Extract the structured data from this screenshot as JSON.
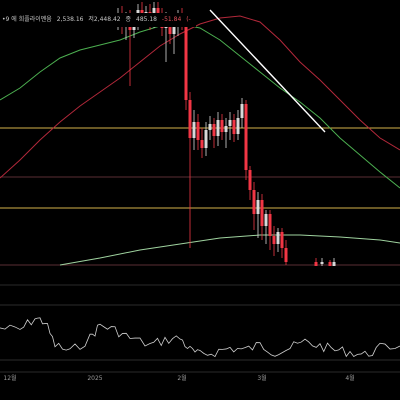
{
  "colors": {
    "background": "#000000",
    "up": "#d9d9d9",
    "down": "#f23645",
    "ma_fast": "#4caf50",
    "ma_slow": "#b2283a",
    "ma_long": "#9fd39f",
    "hline": "#d4b24a",
    "hline_faint": "#5a2e33",
    "trendline": "#ffffff",
    "rsi": "#cfcfcf",
    "separator": "#2a2a2a",
    "axis_text": "#9a9a9a"
  },
  "header": {
    "title_fragment": "•9 에 희플라이멘움",
    "ohlc": [
      {
        "key": "open",
        "text": "2,538.16"
      },
      {
        "key": "high",
        "text": "저2,448.42"
      },
      {
        "key": "low",
        "text": "종"
      },
      {
        "key": "close",
        "text": "485.18"
      },
      {
        "key": "change",
        "text": "-51.84"
      },
      {
        "key": "change_pct",
        "text": "(-"
      }
    ]
  },
  "chart_data": [
    {
      "type": "candlestick",
      "title": "",
      "x_ticks": [
        "12월",
        "2025",
        "2월",
        "3월",
        "4월"
      ],
      "grid": false,
      "horizontal_lines": [
        {
          "level": "upper",
          "color": "#d4b24a"
        },
        {
          "level": "middle",
          "color": "#5a2e33"
        },
        {
          "level": "lower",
          "color": "#d4b24a"
        },
        {
          "level": "bottom",
          "color": "#5a2e33"
        }
      ],
      "series": [
        {
          "kind": "candles",
          "trend": "flat-high then sharp decline"
        },
        {
          "kind": "moving_average",
          "role": "fast"
        },
        {
          "kind": "moving_average",
          "role": "slow"
        },
        {
          "kind": "moving_average",
          "role": "long"
        },
        {
          "kind": "trendline"
        }
      ]
    },
    {
      "type": "line",
      "title": "",
      "series": [
        {
          "kind": "oscillator"
        }
      ],
      "bands": [
        "upper",
        "lower"
      ]
    }
  ]
}
